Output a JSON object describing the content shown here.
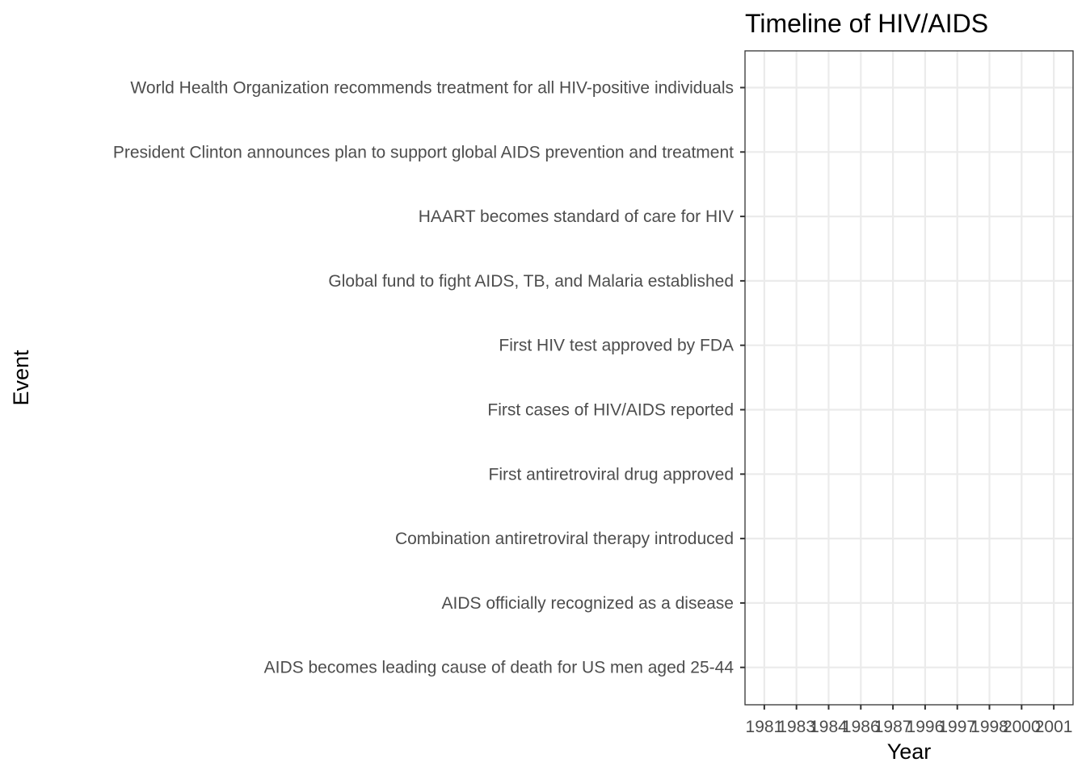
{
  "chart_data": {
    "type": "scatter",
    "title": "Timeline of HIV/AIDS",
    "xlabel": "Year",
    "ylabel": "Event",
    "x_ticks": [
      "1981",
      "1983",
      "1984",
      "1986",
      "1987",
      "1996",
      "1997",
      "1998",
      "2000",
      "2001"
    ],
    "y_categories": [
      "AIDS becomes leading cause of death for US men aged 25-44",
      "AIDS officially recognized as a disease",
      "Combination antiretroviral therapy introduced",
      "First antiretroviral drug approved",
      "First cases of HIV/AIDS reported",
      "First HIV test approved by FDA",
      "Global fund to fight AIDS, TB, and Malaria established",
      "HAART becomes standard of care for HIV",
      "President Clinton announces plan to support global AIDS prevention and treatment",
      "World Health Organization recommends treatment for all HIV-positive individuals"
    ],
    "x_scale": "discrete",
    "points": [],
    "grid": true,
    "legend": "none",
    "colors": {
      "panel_border": "#333333",
      "grid": "#ebebeb",
      "tick_label": "#4d4d4d",
      "tick_mark": "#333333"
    }
  }
}
